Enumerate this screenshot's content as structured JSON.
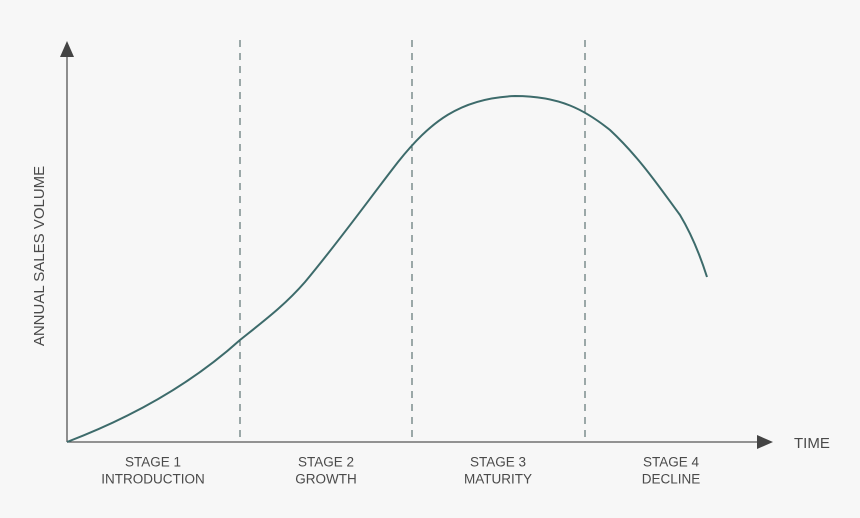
{
  "axes": {
    "y_label": "ANNUAL SALES VOLUME",
    "x_label": "TIME"
  },
  "stages": [
    {
      "name": "STAGE 1",
      "phase": "INTRODUCTION"
    },
    {
      "name": "STAGE 2",
      "phase": "GROWTH"
    },
    {
      "name": "STAGE 3",
      "phase": "MATURITY"
    },
    {
      "name": "STAGE 4",
      "phase": "DECLINE"
    }
  ]
}
